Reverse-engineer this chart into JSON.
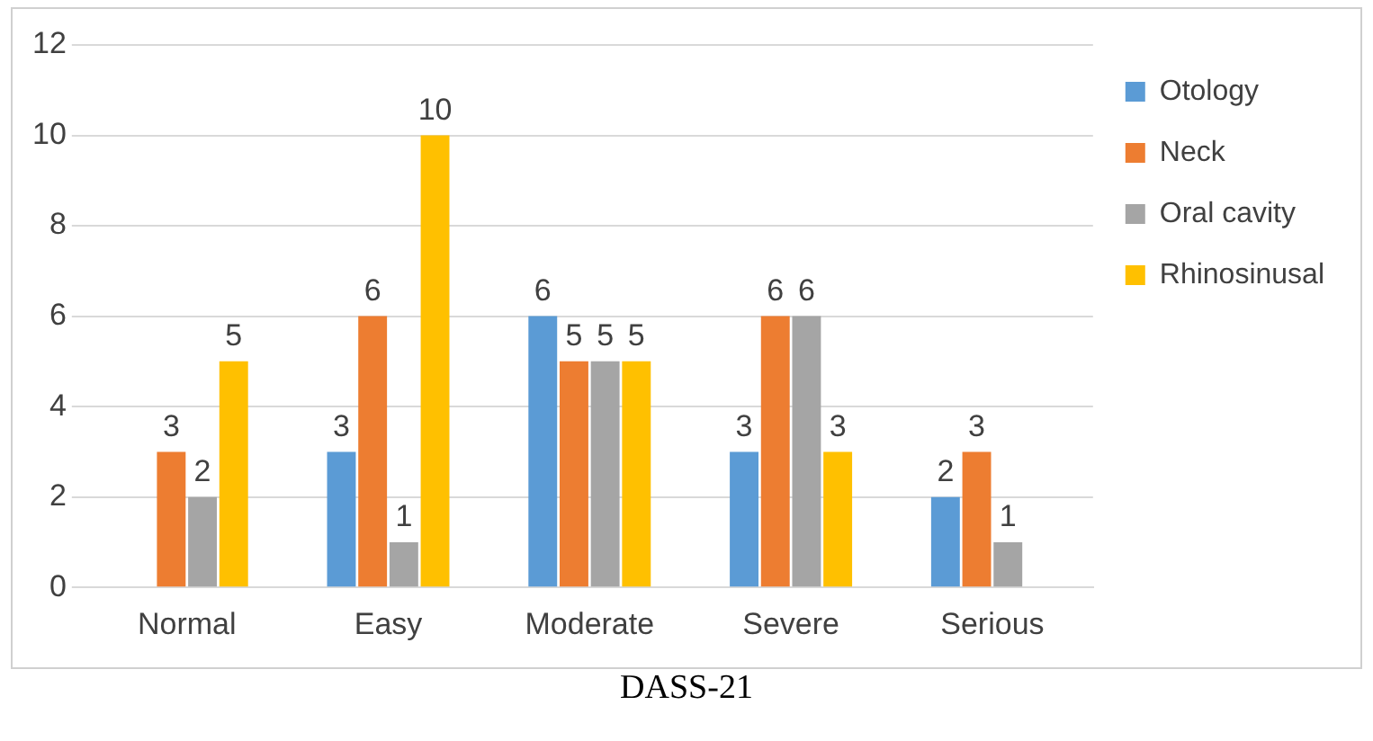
{
  "chart_data": {
    "type": "bar",
    "xlabel": "DASS-21",
    "categories": [
      "Normal",
      "Easy",
      "Moderate",
      "Severe",
      "Serious"
    ],
    "series": [
      {
        "name": "Otology",
        "color": "#5b9bd5",
        "values": [
          0,
          3,
          6,
          3,
          2
        ],
        "value_labels": [
          null,
          "3",
          "6",
          "3",
          "2"
        ]
      },
      {
        "name": "Neck",
        "color": "#ed7d31",
        "values": [
          3,
          6,
          5,
          6,
          3
        ],
        "value_labels": [
          "3",
          "6",
          "5",
          "6",
          "3"
        ]
      },
      {
        "name": "Oral cavity",
        "color": "#a5a5a5",
        "values": [
          2,
          1,
          5,
          6,
          1
        ],
        "value_labels": [
          "2",
          "1",
          "5",
          "6",
          "1"
        ]
      },
      {
        "name": "Rhinosinusal",
        "color": "#ffc000",
        "values": [
          5,
          10,
          5,
          3,
          0
        ],
        "value_labels": [
          "5",
          "10",
          "5",
          "3",
          null
        ]
      }
    ],
    "ylim": [
      0,
      12
    ],
    "yticks": [
      0,
      2,
      4,
      6,
      8,
      10,
      12
    ],
    "grid": "y",
    "legend": "right"
  }
}
